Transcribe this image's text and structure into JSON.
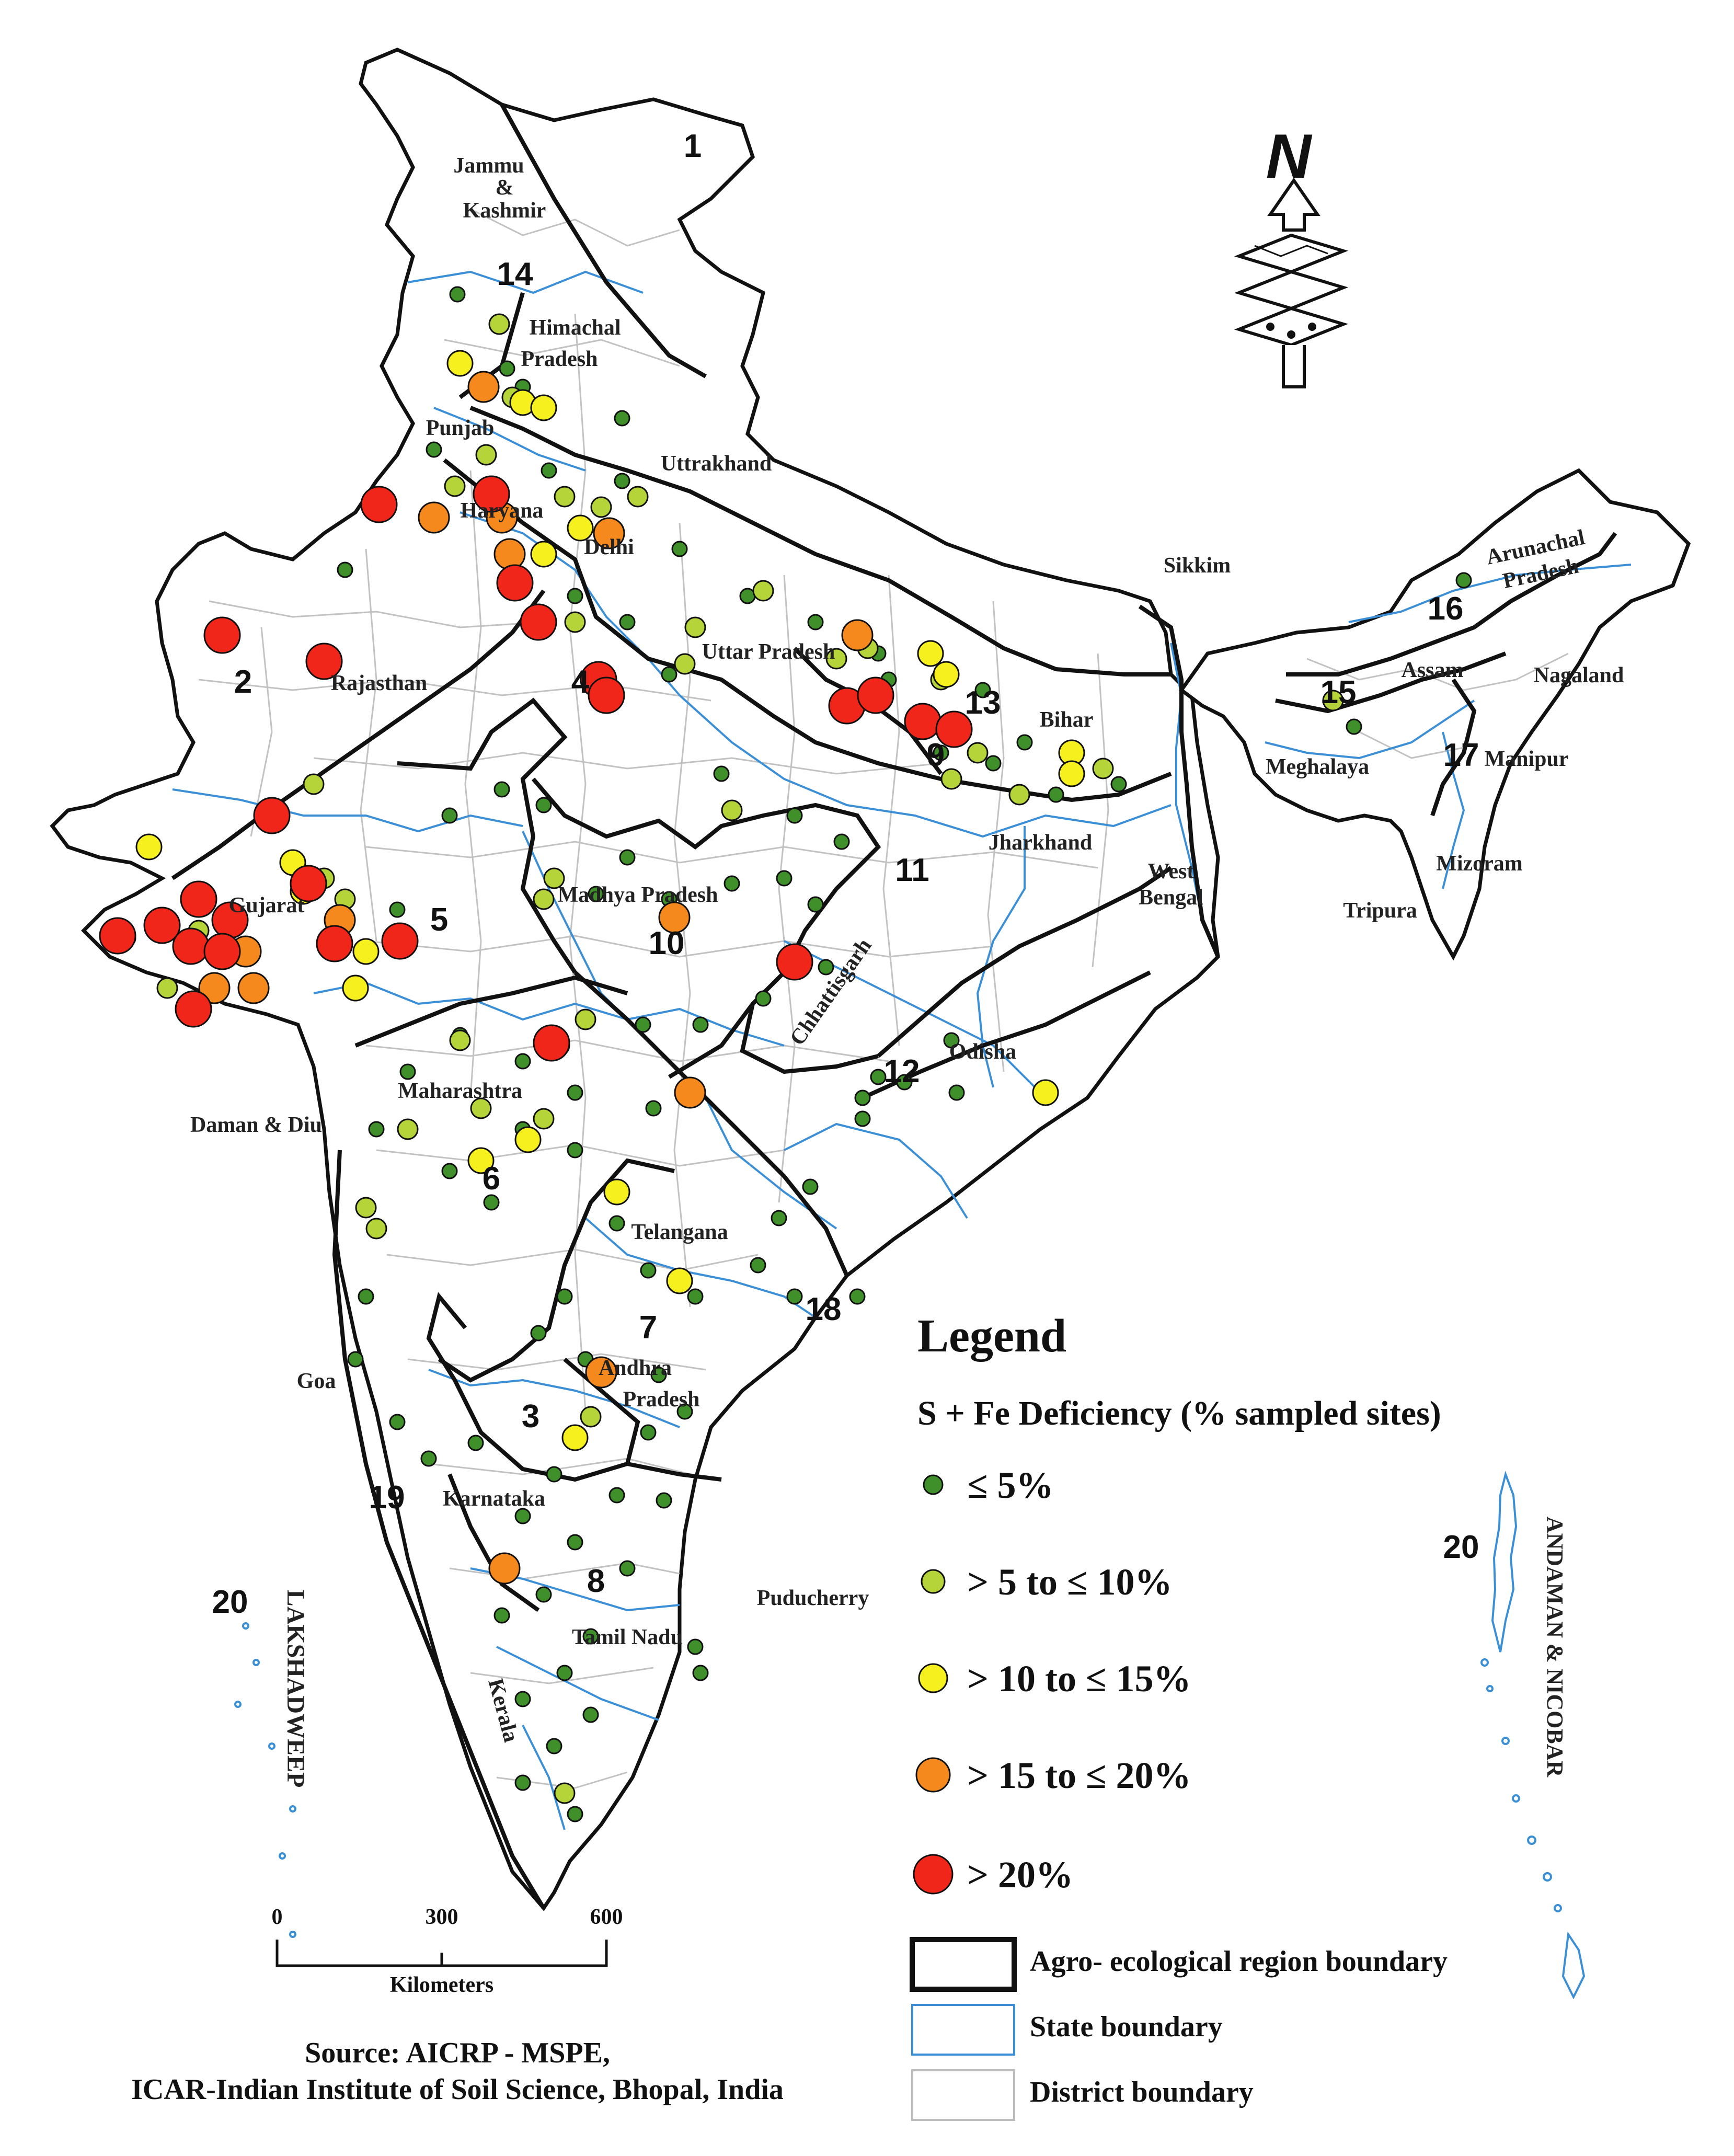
{
  "map": {
    "north_label": "N",
    "source_line1": "Source: AICRP - MSPE,",
    "source_line2": "ICAR-Indian Institute of Soil Science, Bhopal, India",
    "scale": {
      "ticks": [
        "0",
        "300",
        "600"
      ],
      "unit": "Kilometers"
    },
    "colors": {
      "le5": "#3f8f2a",
      "5to10": "#b5d43a",
      "10to15": "#f5f01e",
      "15to20": "#f5891e",
      "gt20": "#f0261a",
      "state_boundary": "#3b8fd6",
      "district_boundary": "#b8b8b8",
      "region_boundary": "#111111"
    },
    "states": [
      "Jammu",
      "&",
      "Kashmir",
      "Himachal",
      "Pradesh",
      "Punjab",
      "Uttrakhand",
      "Haryana",
      "Delhi",
      "Rajasthan",
      "Uttar Pradesh",
      "Bihar",
      "Sikkim",
      "Arunachal",
      "Pradesh",
      "Assam",
      "Nagaland",
      "Meghalaya",
      "Manipur",
      "Mizoram",
      "Tripura",
      "Jharkhand",
      "West",
      "Bengal",
      "Gujarat",
      "Madhya Pradesh",
      "Chhattisgarh",
      "Odisha",
      "Maharashtra",
      "Daman & Diu",
      "Telangana",
      "Andhra",
      "Pradesh",
      "Goa",
      "Karnataka",
      "Tamil Nadu",
      "Puducherry",
      "Kerala",
      "LAKSHADWEEP",
      "ANDAMAN & NICOBAR"
    ],
    "region_numbers": [
      "1",
      "2",
      "3",
      "4",
      "5",
      "6",
      "7",
      "8",
      "9",
      "10",
      "11",
      "12",
      "13",
      "14",
      "15",
      "16",
      "17",
      "18",
      "19",
      "20",
      "20"
    ]
  },
  "legend": {
    "title": "Legend",
    "subtitle": "S + Fe  Deficiency (% sampled sites)",
    "classes": [
      {
        "label": "≤ 5%",
        "color_key": "le5"
      },
      {
        "label": "> 5 to ≤ 10%",
        "color_key": "5to10"
      },
      {
        "label": "> 10 to ≤ 15%",
        "color_key": "10to15"
      },
      {
        "label": "> 15 to ≤ 20%",
        "color_key": "15to20"
      },
      {
        "label": "> 20%",
        "color_key": "gt20"
      }
    ],
    "boundaries": [
      {
        "label": "Agro- ecological region boundary"
      },
      {
        "label": "State boundary"
      },
      {
        "label": "District boundary"
      }
    ]
  }
}
